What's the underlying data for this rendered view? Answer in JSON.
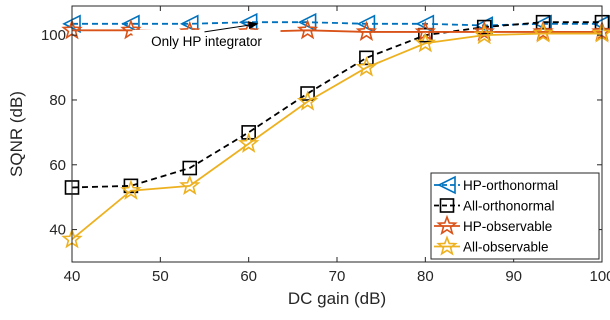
{
  "chart_data": {
    "type": "line",
    "xlabel": "DC gain (dB)",
    "ylabel": "SQNR (dB)",
    "xlim": [
      40,
      100
    ],
    "ylim": [
      30,
      109
    ],
    "xticks": [
      40,
      50,
      60,
      70,
      80,
      90,
      100
    ],
    "yticks": [
      40,
      60,
      80,
      100
    ],
    "x": [
      40,
      46.67,
      53.33,
      60,
      66.67,
      73.33,
      80,
      86.67,
      93.33,
      100
    ],
    "grid": true,
    "legend_position": "bottom-right",
    "series": [
      {
        "name": "HP-orthonormal",
        "color": "#0072BD",
        "marker": "triangle-left",
        "line_style": "dashed",
        "values": [
          103.5,
          103.5,
          103.5,
          104,
          104,
          103.5,
          103.5,
          103,
          103.5,
          103.5
        ]
      },
      {
        "name": "All-orthonormal",
        "color": "#000000",
        "marker": "square",
        "line_style": "dashed",
        "values": [
          53,
          53.5,
          59,
          70,
          82,
          93,
          100,
          102.5,
          104,
          104
        ]
      },
      {
        "name": "HP-observable",
        "color": "#D95319",
        "marker": "star",
        "line_style": "solid",
        "values": [
          101.5,
          101.5,
          101,
          101,
          101.5,
          101,
          101,
          101,
          101,
          101
        ]
      },
      {
        "name": "All-observable",
        "color": "#EDB120",
        "marker": "star",
        "line_style": "solid",
        "values": [
          37,
          52,
          53.5,
          66.5,
          79.5,
          90,
          97.5,
          100,
          100.5,
          100.5
        ]
      }
    ],
    "annotations": [
      {
        "text": "Only HP integrator",
        "arrow_points": [
          [
            55,
            101
          ],
          [
            61,
            103.5
          ]
        ]
      }
    ]
  }
}
